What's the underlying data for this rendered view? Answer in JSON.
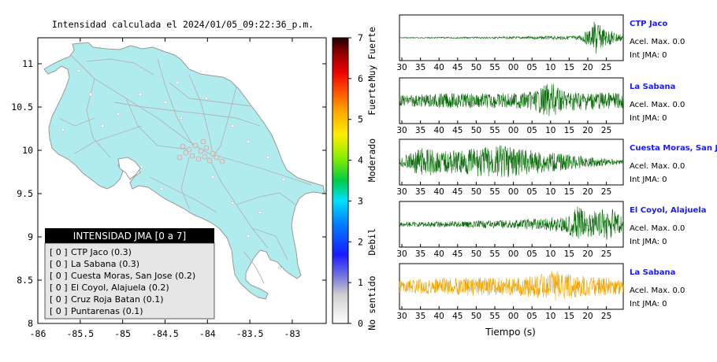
{
  "map": {
    "title": "Intensidad calculada el 2024/01/05_09:22:36_p.m.",
    "x_ticks": [
      "-86",
      "-85.5",
      "-85",
      "-84.5",
      "-84",
      "-83.5",
      "-83"
    ],
    "y_ticks": [
      "11",
      "10.5",
      "10",
      "9.5",
      "9",
      "8.5",
      "8"
    ]
  },
  "colorbar": {
    "ticks": [
      "0",
      "1",
      "2",
      "3",
      "4",
      "5",
      "6",
      "7"
    ],
    "labels": [
      "No sentido",
      "Debil",
      "Moderado",
      "Fuerte",
      "Muy Fuerte"
    ]
  },
  "legend": {
    "title": "INTENSIDAD JMA [0 a 7]",
    "rows": [
      {
        "tag": "[ 0 ]",
        "name": "CTP Jaco (0.3)"
      },
      {
        "tag": "[ 0 ]",
        "name": "La Sabana (0.3)"
      },
      {
        "tag": "[ 0 ]",
        "name": "Cuesta Moras, San Jose (0.2)"
      },
      {
        "tag": "[ 0 ]",
        "name": "El Coyol, Alajuela (0.2)"
      },
      {
        "tag": "[ 0 ]",
        "name": "Cruz Roja Batan (0.1)"
      },
      {
        "tag": "[ 0 ]",
        "name": "Puntarenas (0.1)"
      }
    ]
  },
  "waveforms": {
    "x_ticks": [
      "30",
      "35",
      "40",
      "45",
      "50",
      "55",
      "00",
      "05",
      "10",
      "15",
      "20",
      "25"
    ],
    "xlabel": "Tiempo (s)",
    "panels": [
      {
        "station": "CTP Jaco",
        "acel": "Acel. Max. 0.0",
        "jma": "Int JMA: 0",
        "color": "#0a6b0a"
      },
      {
        "station": "La Sabana",
        "acel": "Acel. Max. 0.0",
        "jma": "Int JMA: 0",
        "color": "#0a6b0a"
      },
      {
        "station": "Cuesta Moras, San Jose",
        "acel": "Acel. Max. 0.0",
        "jma": "Int JMA: 0",
        "color": "#0a6b0a"
      },
      {
        "station": "El Coyol, Alajuela",
        "acel": "Acel. Max. 0.0",
        "jma": "Int JMA: 0",
        "color": "#0a6b0a"
      },
      {
        "station": "La Sabana",
        "acel": "Acel. Max. 0.0",
        "jma": "Int JMA: 0",
        "color": "#f2a400"
      }
    ]
  },
  "chart_data": [
    {
      "type": "scatter",
      "title": "Intensidad calculada el 2024/01/05_09:22:36_p.m.",
      "xlim": [
        -86,
        -82.6
      ],
      "ylim": [
        8,
        11.3
      ],
      "grid": false,
      "colorbar": {
        "min": 0,
        "max": 7
      },
      "legend": "bottom-left"
    },
    {
      "type": "line",
      "xlabel": "Tiempo (s)",
      "series": [
        {
          "name": "CTP Jaco",
          "max_acceleration": 0.0,
          "jma_intensity": 0
        },
        {
          "name": "La Sabana",
          "max_acceleration": 0.0,
          "jma_intensity": 0
        },
        {
          "name": "Cuesta Moras, San Jose",
          "max_acceleration": 0.0,
          "jma_intensity": 0
        },
        {
          "name": "El Coyol, Alajuela",
          "max_acceleration": 0.0,
          "jma_intensity": 0
        },
        {
          "name": "La Sabana",
          "max_acceleration": 0.0,
          "jma_intensity": 0
        }
      ]
    }
  ]
}
